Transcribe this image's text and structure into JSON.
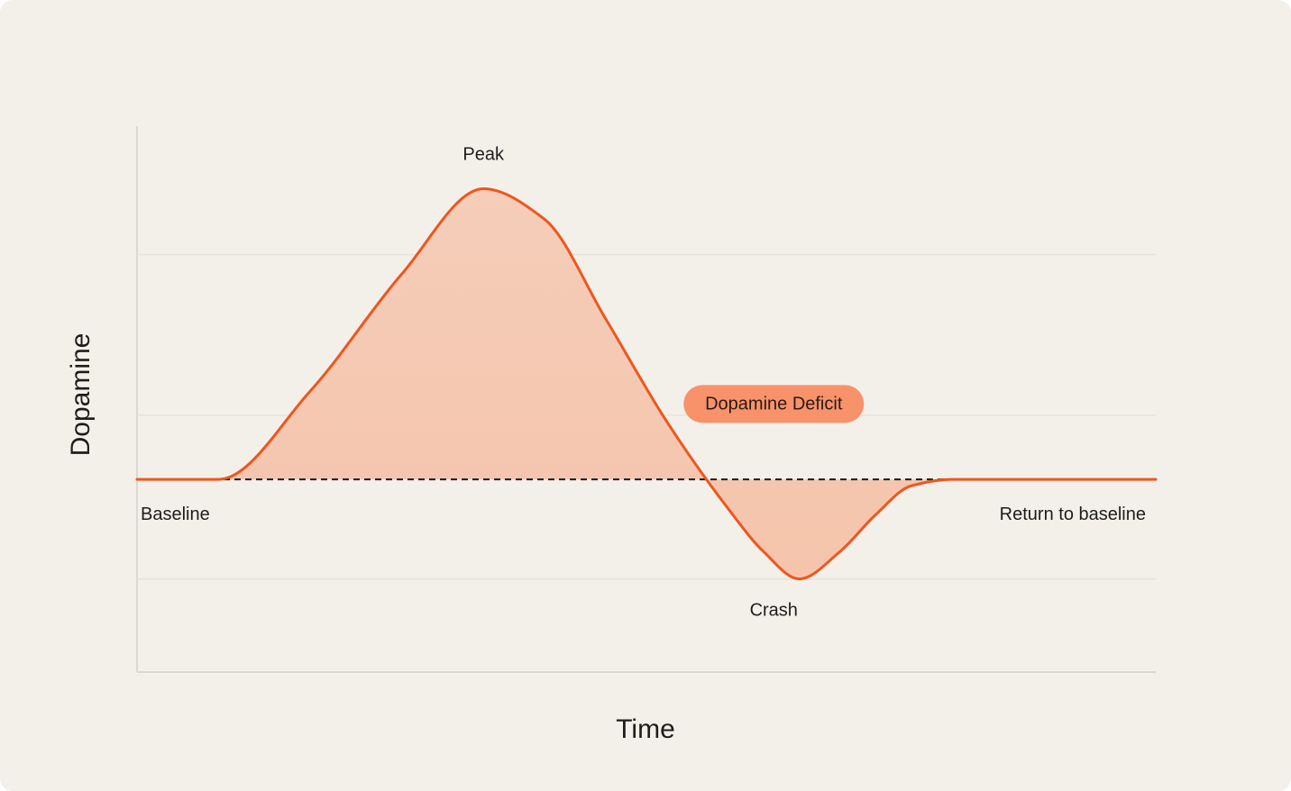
{
  "chart_data": {
    "type": "area",
    "title": "",
    "xlabel": "Time",
    "ylabel": "Dopamine",
    "xlim": [
      0,
      100
    ],
    "ylim": [
      -1.2,
      2.2
    ],
    "grid_y": [
      -0.62,
      0.4,
      1.4
    ],
    "baseline": 0,
    "x": [
      0,
      8,
      17,
      26,
      34,
      40,
      46,
      52,
      58,
      61.5,
      65,
      69,
      72.5,
      76,
      80,
      86,
      90,
      100
    ],
    "values": [
      0,
      0,
      0.55,
      1.28,
      1.81,
      1.62,
      1.0,
      0.36,
      -0.18,
      -0.45,
      -0.62,
      -0.45,
      -0.22,
      -0.04,
      0,
      0,
      0,
      0
    ],
    "annotations": [
      {
        "text": "Peak",
        "x": 34,
        "y": 1.81,
        "position": "above"
      },
      {
        "text": "Crash",
        "x": 62.5,
        "y": -0.62,
        "position": "below"
      },
      {
        "text": "Baseline",
        "x": 0,
        "y": 0,
        "position": "below-left"
      },
      {
        "text": "Return to baseline",
        "x": 100,
        "y": 0,
        "position": "below-right"
      },
      {
        "text": "Dopamine Deficit",
        "x": 62.5,
        "y": 0.47,
        "style": "pill"
      }
    ],
    "colors": {
      "line": "#f0561d",
      "fill_top": "#f5cdb9",
      "fill_bottom": "#f5c4ab",
      "pill": "#f7926b",
      "baseline_line": "#1a1a1a",
      "background": "#f3f0ea"
    }
  }
}
